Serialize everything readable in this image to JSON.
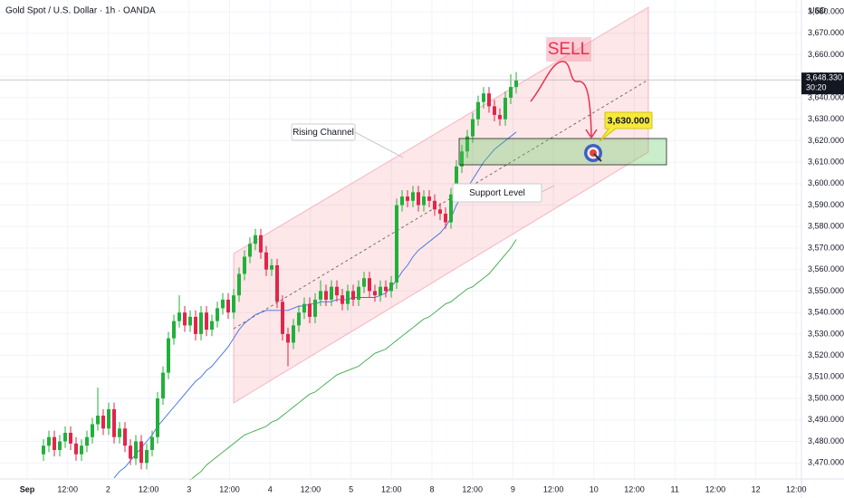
{
  "chart_data": {
    "type": "candlestick",
    "title": "Gold Spot / U.S. Dollar · 1h · OANDA",
    "currency": "USD",
    "ylim": [
      3462.5,
      3685.5
    ],
    "yticks": [
      {
        "value": 3470,
        "label": "3,470.000"
      },
      {
        "value": 3480,
        "label": "3,480.000"
      },
      {
        "value": 3490,
        "label": "3,490.000"
      },
      {
        "value": 3500,
        "label": "3,500.000"
      },
      {
        "value": 3510,
        "label": "3,510.000"
      },
      {
        "value": 3520,
        "label": "3,520.000"
      },
      {
        "value": 3530,
        "label": "3,530.000"
      },
      {
        "value": 3540,
        "label": "3,540.000"
      },
      {
        "value": 3550,
        "label": "3,550.000"
      },
      {
        "value": 3560,
        "label": "3,560.000"
      },
      {
        "value": 3570,
        "label": "3,570.000"
      },
      {
        "value": 3580,
        "label": "3,580.000"
      },
      {
        "value": 3590,
        "label": "3,590.000"
      },
      {
        "value": 3600,
        "label": "3,600.000"
      },
      {
        "value": 3610,
        "label": "3,610.000"
      },
      {
        "value": 3620,
        "label": "3,620.000"
      },
      {
        "value": 3630,
        "label": "3,630.000"
      },
      {
        "value": 3640,
        "label": "3,640.000"
      },
      {
        "value": 3650,
        "label": "3,650.000"
      },
      {
        "value": 3660,
        "label": "3,660.000"
      },
      {
        "value": 3670,
        "label": "3,670.000"
      },
      {
        "value": 3680,
        "label": "3,680.000"
      }
    ],
    "x_labels": [
      "Sep",
      "12:00",
      "2",
      "12:00",
      "3",
      "12:00",
      "4",
      "12:00",
      "5",
      "12:00",
      "8",
      "12:00",
      "9",
      "12:00",
      "10",
      "12:00",
      "11",
      "12:00",
      "12",
      "12:00"
    ],
    "up_color": "#22b03a",
    "down_color": "#e0264a",
    "candles": [
      [
        3474,
        3481,
        3471,
        3478
      ],
      [
        3478,
        3485,
        3475,
        3482
      ],
      [
        3482,
        3485,
        3473,
        3476
      ],
      [
        3476,
        3483,
        3473,
        3480
      ],
      [
        3480,
        3487,
        3477,
        3484
      ],
      [
        3484,
        3487,
        3476,
        3479
      ],
      [
        3479,
        3482,
        3471,
        3474
      ],
      [
        3474,
        3481,
        3471,
        3478
      ],
      [
        3478,
        3485,
        3475,
        3482
      ],
      [
        3482,
        3491,
        3479,
        3488
      ],
      [
        3488,
        3505,
        3485,
        3492
      ],
      [
        3492,
        3495,
        3483,
        3486
      ],
      [
        3486,
        3498,
        3483,
        3495
      ],
      [
        3495,
        3498,
        3479,
        3482
      ],
      [
        3482,
        3489,
        3479,
        3486
      ],
      [
        3486,
        3489,
        3475,
        3478
      ],
      [
        3478,
        3481,
        3469,
        3472
      ],
      [
        3472,
        3483,
        3469,
        3480
      ],
      [
        3480,
        3483,
        3467,
        3470
      ],
      [
        3470,
        3479,
        3467,
        3476
      ],
      [
        3476,
        3485,
        3473,
        3482
      ],
      [
        3482,
        3503,
        3479,
        3500
      ],
      [
        3500,
        3515,
        3497,
        3512
      ],
      [
        3512,
        3531,
        3509,
        3528
      ],
      [
        3528,
        3539,
        3525,
        3536
      ],
      [
        3536,
        3548,
        3533,
        3540
      ],
      [
        3540,
        3543,
        3531,
        3534
      ],
      [
        3534,
        3541,
        3531,
        3538
      ],
      [
        3538,
        3541,
        3527,
        3530
      ],
      [
        3530,
        3543,
        3527,
        3540
      ],
      [
        3540,
        3543,
        3529,
        3532
      ],
      [
        3532,
        3539,
        3529,
        3536
      ],
      [
        3536,
        3545,
        3533,
        3542
      ],
      [
        3542,
        3549,
        3539,
        3546
      ],
      [
        3546,
        3549,
        3537,
        3540
      ],
      [
        3540,
        3551,
        3537,
        3548
      ],
      [
        3548,
        3561,
        3545,
        3558
      ],
      [
        3558,
        3569,
        3555,
        3566
      ],
      [
        3566,
        3575,
        3563,
        3572
      ],
      [
        3572,
        3579,
        3569,
        3576
      ],
      [
        3576,
        3579,
        3565,
        3568
      ],
      [
        3568,
        3571,
        3557,
        3560
      ],
      [
        3560,
        3565,
        3557,
        3562
      ],
      [
        3562,
        3565,
        3542,
        3545
      ],
      [
        3545,
        3548,
        3527,
        3530
      ],
      [
        3530,
        3533,
        3515,
        3526
      ],
      [
        3526,
        3537,
        3523,
        3534
      ],
      [
        3534,
        3543,
        3531,
        3540
      ],
      [
        3540,
        3547,
        3537,
        3544
      ],
      [
        3544,
        3547,
        3535,
        3538
      ],
      [
        3538,
        3549,
        3535,
        3546
      ],
      [
        3546,
        3555,
        3543,
        3550
      ],
      [
        3550,
        3553,
        3543,
        3546
      ],
      [
        3546,
        3555,
        3543,
        3552
      ],
      [
        3552,
        3555,
        3545,
        3548
      ],
      [
        3548,
        3551,
        3541,
        3544
      ],
      [
        3544,
        3553,
        3541,
        3550
      ],
      [
        3550,
        3553,
        3543,
        3546
      ],
      [
        3546,
        3555,
        3543,
        3552
      ],
      [
        3552,
        3559,
        3549,
        3556
      ],
      [
        3556,
        3559,
        3547,
        3550
      ],
      [
        3550,
        3553,
        3545,
        3548
      ],
      [
        3548,
        3555,
        3545,
        3552
      ],
      [
        3552,
        3555,
        3547,
        3550
      ],
      [
        3550,
        3557,
        3547,
        3554
      ],
      [
        3554,
        3593,
        3551,
        3590
      ],
      [
        3590,
        3597,
        3587,
        3594
      ],
      [
        3594,
        3597,
        3589,
        3592
      ],
      [
        3592,
        3599,
        3589,
        3596
      ],
      [
        3596,
        3599,
        3587,
        3590
      ],
      [
        3590,
        3597,
        3587,
        3594
      ],
      [
        3594,
        3597,
        3589,
        3592
      ],
      [
        3592,
        3595,
        3585,
        3588
      ],
      [
        3588,
        3591,
        3583,
        3586
      ],
      [
        3586,
        3589,
        3579,
        3582
      ],
      [
        3582,
        3598,
        3579,
        3595
      ],
      [
        3595,
        3611,
        3592,
        3608
      ],
      [
        3608,
        3618,
        3605,
        3615
      ],
      [
        3615,
        3625,
        3612,
        3622
      ],
      [
        3622,
        3633,
        3619,
        3630
      ],
      [
        3630,
        3641,
        3627,
        3638
      ],
      [
        3638,
        3645,
        3635,
        3642
      ],
      [
        3642,
        3645,
        3633,
        3636
      ],
      [
        3636,
        3639,
        3629,
        3632
      ],
      [
        3632,
        3635,
        3627,
        3630
      ],
      [
        3630,
        3643,
        3627,
        3640
      ],
      [
        3640,
        3651,
        3637,
        3645
      ],
      [
        3645,
        3652,
        3642,
        3648
      ]
    ],
    "series": [
      {
        "color": "#3f6fe0",
        "values": [
          null,
          null,
          null,
          null,
          null,
          null,
          null,
          null,
          null,
          null,
          null,
          null,
          null,
          3463,
          3466,
          3468,
          3471,
          3474,
          3477,
          3480,
          3483,
          3487,
          3490,
          3493,
          3496,
          3499,
          3502,
          3505,
          3508,
          3510,
          3513,
          3515,
          3518,
          3521,
          3524,
          3528,
          3532,
          3535,
          3537,
          3539,
          3540,
          3541,
          3541,
          3541,
          3541,
          3541,
          3542,
          3543,
          3543,
          3544,
          3544,
          3545,
          3545,
          3545,
          3546,
          3546,
          3546,
          3547,
          3547,
          3547,
          3547,
          3547,
          3548,
          3549,
          3552,
          3555,
          3559,
          3562,
          3566,
          3569,
          3571,
          3573,
          3575,
          3577,
          3580,
          3584,
          3590,
          3594,
          3598,
          3602,
          3606,
          3610,
          3613,
          3616,
          3618,
          3620,
          3622,
          3624
        ]
      },
      {
        "color": "#3aa84a",
        "values": [
          null,
          null,
          null,
          null,
          null,
          null,
          null,
          null,
          null,
          null,
          null,
          null,
          null,
          null,
          null,
          null,
          null,
          null,
          null,
          null,
          null,
          null,
          null,
          null,
          null,
          null,
          null,
          3462,
          3464,
          3466,
          3469,
          3471,
          3473,
          3475,
          3477,
          3479,
          3481,
          3483,
          3484,
          3485,
          3486,
          3487,
          3489,
          3490,
          3492,
          3494,
          3496,
          3498,
          3500,
          3502,
          3503,
          3505,
          3507,
          3509,
          3511,
          3512,
          3513,
          3514,
          3515,
          3517,
          3519,
          3521,
          3522,
          3523,
          3525,
          3527,
          3529,
          3531,
          3533,
          3535,
          3537,
          3538,
          3540,
          3542,
          3544,
          3545,
          3547,
          3549,
          3551,
          3552,
          3554,
          3556,
          3558,
          3561,
          3564,
          3567,
          3570,
          3574
        ]
      }
    ],
    "price_line": {
      "value": 3648.33,
      "value_label": "3,648.330",
      "countdown": "30:20"
    },
    "target": {
      "value": 3630,
      "value_label": "3,630.000"
    },
    "annotations": {
      "channel": "Rising Channel",
      "support": "Support Level",
      "signal": "SELL"
    }
  }
}
